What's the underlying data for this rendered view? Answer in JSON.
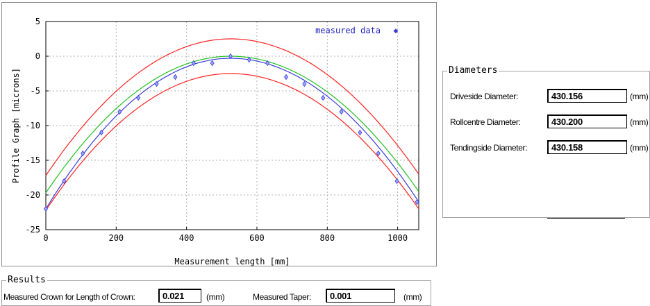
{
  "chart_data": {
    "type": "line",
    "xlabel": "Measurement length [mm]",
    "ylabel": "Profile Graph [microns]",
    "xlim": [
      0,
      1060
    ],
    "ylim": [
      -25,
      5
    ],
    "xticks": [
      0,
      200,
      400,
      600,
      800,
      1000
    ],
    "yticks": [
      5,
      0,
      -5,
      -10,
      -15,
      -20,
      -25
    ],
    "grid": true,
    "legend": {
      "position": "top-right",
      "label": "measured data",
      "marker": "◆"
    },
    "series": [
      {
        "name": "measured data",
        "kind": "scatter",
        "color": "#3a3ad8",
        "x": [
          0,
          52,
          105,
          158,
          210,
          263,
          315,
          368,
          420,
          473,
          525,
          578,
          630,
          683,
          735,
          788,
          840,
          893,
          945,
          998,
          1055
        ],
        "y": [
          -22,
          -18,
          -14,
          -11,
          -8,
          -6,
          -4,
          -3,
          -1,
          -1,
          0,
          -0.5,
          -1,
          -3,
          -4,
          -6,
          -8,
          -11,
          -14,
          -18,
          -21
        ]
      },
      {
        "kind": "curve",
        "color": "#3a3ad8",
        "peak_x": 525,
        "peak_y": -0.3,
        "left_end": -22,
        "right_end": -21
      },
      {
        "kind": "curve",
        "color": "#20c020",
        "peak_x": 525,
        "peak_y": 0,
        "left_end": -19.7,
        "right_end": -19.5
      },
      {
        "kind": "curve",
        "color": "#ff2020",
        "peak_x": 525,
        "peak_y": 2.5,
        "left_end": -17.2,
        "right_end": -17.0
      },
      {
        "kind": "curve",
        "color": "#ff2020",
        "peak_x": 525,
        "peak_y": -2.5,
        "left_end": -22.2,
        "right_end": -22.0
      }
    ]
  },
  "diameters": {
    "title": "Diameters",
    "rows": [
      {
        "label": "Driveside Diameter:",
        "value": "430.156",
        "unit": "(mm)"
      },
      {
        "label": "Rollcentre Diameter:",
        "value": "430.200",
        "unit": "(mm)"
      },
      {
        "label": "Tendingside Diameter:",
        "value": "430.158",
        "unit": "(mm)"
      }
    ]
  },
  "results": {
    "title": "Results",
    "crown_label": "Measured Crown for Length of Crown:",
    "crown_value": "0.021",
    "crown_unit": "(mm)",
    "taper_label": "Measured Taper:",
    "taper_value": "0.001",
    "taper_unit": "(mm)"
  }
}
